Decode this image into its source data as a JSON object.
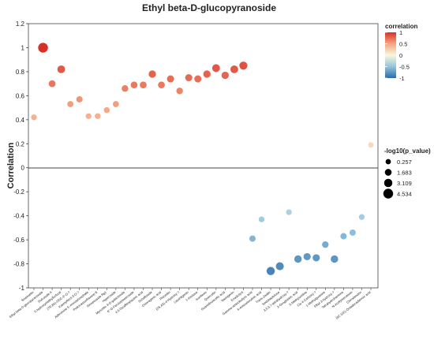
{
  "chart_data": {
    "type": "scatter",
    "title": "Ethyl beta-D-glucopyranoside",
    "ylabel": "Correlation",
    "xlabel": "",
    "ylim": [
      -1.0,
      1.2
    ],
    "yticks": [
      "1.2",
      "1",
      "0.8",
      "0.6",
      "0.4",
      "0.2",
      "0",
      "-0.2",
      "-0.4",
      "-0.6",
      "-0.8",
      "-1"
    ],
    "grid": false,
    "legend_color": {
      "title": "correlation",
      "ticks": [
        "1",
        "0.5",
        "0",
        "-0.5",
        "-1"
      ],
      "stops": [
        "#d73027",
        "#f4a582",
        "#f7f7dc",
        "#92c5de",
        "#2c6aa8"
      ]
    },
    "legend_size": {
      "title": "-log10(p_value)",
      "entries": [
        {
          "label": "0.257",
          "value": 0.257
        },
        {
          "label": "1.683",
          "value": 1.683
        },
        {
          "label": "3.109",
          "value": 3.109
        },
        {
          "label": "4.534",
          "value": 4.534
        }
      ]
    },
    "points": [
      {
        "label": "Sinensetin",
        "y": 0.42,
        "p": 0.7
      },
      {
        "label": "Ethyl beta-D-glucopyranoside",
        "y": 1.0,
        "p": 4.534
      },
      {
        "label": "Dulcoside A",
        "y": 0.7,
        "p": 1.7
      },
      {
        "label": "5-hydroxymethylfurfural",
        "y": 0.82,
        "p": 2.6
      },
      {
        "label": "(7R,8S)-DDC-9'-O-?",
        "y": 0.53,
        "p": 1.0
      },
      {
        "label": "Kaempferol-3-O-?",
        "y": 0.57,
        "p": 1.2
      },
      {
        "label": "Adenosine 5'-monophosphate",
        "y": 0.43,
        "p": 0.7
      },
      {
        "label": "Podocarpusflavone B",
        "y": 0.43,
        "p": 0.7
      },
      {
        "label": "Ginsenoside Rg1",
        "y": 0.48,
        "p": 0.8
      },
      {
        "label": "Hyperoside",
        "y": 0.53,
        "p": 1.0
      },
      {
        "label": "Myricetin 3-O-galactoside",
        "y": 0.66,
        "p": 1.5
      },
      {
        "label": "6\"-O-Feruloylsweroside",
        "y": 0.69,
        "p": 1.7
      },
      {
        "label": "4,5-Dicaffeoylquinic acid",
        "y": 0.69,
        "p": 1.7
      },
      {
        "label": "Schaftoside",
        "y": 0.78,
        "p": 2.2
      },
      {
        "label": "Chlorogenic acid",
        "y": 0.69,
        "p": 1.7
      },
      {
        "label": "Phloretin",
        "y": 0.74,
        "p": 2.0
      },
      {
        "label": "(2S,4S)-4-Hydroxy-?",
        "y": 0.64,
        "p": 1.5
      },
      {
        "label": "Liquiritigenin",
        "y": 0.75,
        "p": 2.0
      },
      {
        "label": "1-Kestose",
        "y": 0.74,
        "p": 2.0
      },
      {
        "label": "Isovitexin",
        "y": 0.78,
        "p": 2.2
      },
      {
        "label": "Quercetin",
        "y": 0.83,
        "p": 2.6
      },
      {
        "label": "Guanidinoacetic acid",
        "y": 0.77,
        "p": 2.2
      },
      {
        "label": "Naringenin",
        "y": 0.82,
        "p": 2.6
      },
      {
        "label": "Eriodictyol",
        "y": 0.85,
        "p": 2.9
      },
      {
        "label": "Gamma-aminobutyric acid",
        "y": -0.59,
        "p": 1.2
      },
      {
        "label": "5-Aminolevulinic acid",
        "y": -0.43,
        "p": 0.7
      },
      {
        "label": "Trans-Zeatin",
        "y": -0.86,
        "p": 3.1
      },
      {
        "label": "Sedoheptulose",
        "y": -0.82,
        "p": 2.8
      },
      {
        "label": "3,5,6,7-tetrahydroxy-?",
        "y": -0.37,
        "p": 0.7
      },
      {
        "label": "2-Oxoglutaric acid",
        "y": -0.76,
        "p": 2.3
      },
      {
        "label": "5-Methyluridine",
        "y": -0.74,
        "p": 2.1
      },
      {
        "label": "Cis-4-Carboxy-?",
        "y": -0.75,
        "p": 2.1
      },
      {
        "label": "1-Methylguanine",
        "y": -0.64,
        "p": 1.5
      },
      {
        "label": "Ethyl 3-hydroxy-?",
        "y": -0.76,
        "p": 2.3
      },
      {
        "label": "Tetrahydroharmine",
        "y": -0.57,
        "p": 1.2
      },
      {
        "label": "N-Acetylserotonin",
        "y": -0.54,
        "p": 1.1
      },
      {
        "label": "Clerodendrin",
        "y": -0.41,
        "p": 0.7
      },
      {
        "label": "(9Z,11E)-Octadecadienoic acid",
        "y": 0.19,
        "p": 0.3
      }
    ]
  }
}
